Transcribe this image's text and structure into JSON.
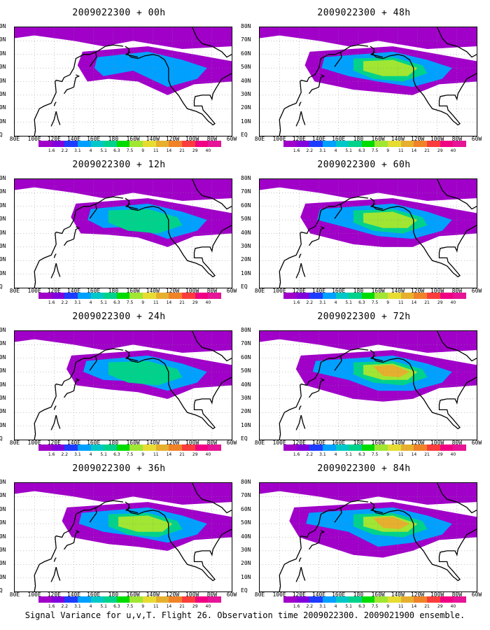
{
  "panels": [
    {
      "id": "p00",
      "title": "2009022300 + 00h",
      "lead_hours": 0,
      "intensity": 0.25
    },
    {
      "id": "p12",
      "title": "2009022300 + 12h",
      "lead_hours": 12,
      "intensity": 0.4
    },
    {
      "id": "p24",
      "title": "2009022300 + 24h",
      "lead_hours": 24,
      "intensity": 0.5
    },
    {
      "id": "p36",
      "title": "2009022300 + 36h",
      "lead_hours": 36,
      "intensity": 0.6
    },
    {
      "id": "p48",
      "title": "2009022300 + 48h",
      "lead_hours": 48,
      "intensity": 0.65
    },
    {
      "id": "p60",
      "title": "2009022300 + 60h",
      "lead_hours": 60,
      "intensity": 0.75
    },
    {
      "id": "p72",
      "title": "2009022300 + 72h",
      "lead_hours": 72,
      "intensity": 0.85
    },
    {
      "id": "p84",
      "title": "2009022300 + 84h",
      "lead_hours": 84,
      "intensity": 1.0
    }
  ],
  "axes": {
    "lat_labels": [
      "80N",
      "70N",
      "60N",
      "50N",
      "40N",
      "30N",
      "20N",
      "10N",
      "EQ"
    ],
    "lon_labels": [
      "80E",
      "100E",
      "120E",
      "140E",
      "160E",
      "180",
      "160W",
      "140W",
      "120W",
      "100W",
      "80W",
      "60W"
    ]
  },
  "colorbar": {
    "levels": [
      "1.6",
      "2.2",
      "3.1",
      "4",
      "5.1",
      "6.3",
      "7.5",
      "9",
      "11",
      "14",
      "21",
      "29",
      "40"
    ],
    "colors": [
      "#a000c8",
      "#8200dc",
      "#1e3cff",
      "#00a0ff",
      "#00c8c8",
      "#00d28c",
      "#00dc00",
      "#a0e632",
      "#e6dc32",
      "#e6af2d",
      "#f08228",
      "#fa3c3c",
      "#f00082"
    ]
  },
  "caption": "Signal Variance for u,v,T. Flight 26. Observation time 2009022300. 2009021900 ensemble."
}
